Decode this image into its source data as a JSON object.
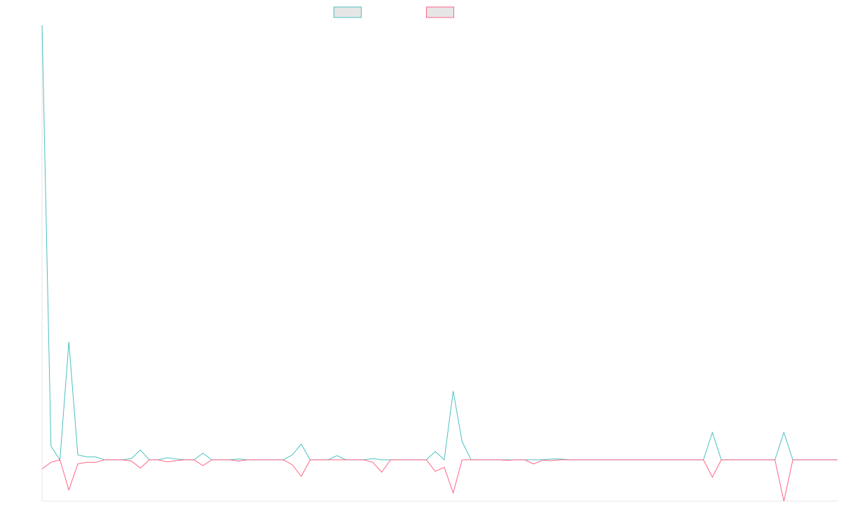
{
  "chart_data": {
    "type": "line",
    "title": "",
    "xlabel": "",
    "ylabel": "",
    "x": [
      0,
      1,
      2,
      3,
      4,
      5,
      6,
      7,
      8,
      9,
      10,
      11,
      12,
      13,
      14,
      15,
      16,
      17,
      18,
      19,
      20,
      21,
      22,
      23,
      24,
      25,
      26,
      27,
      28,
      29,
      30,
      31,
      32,
      33,
      34,
      35,
      36,
      37,
      38,
      39,
      40,
      41,
      42,
      43,
      44,
      45,
      46,
      47,
      48,
      49,
      50,
      51,
      52,
      53,
      54,
      55,
      56,
      57,
      58,
      59,
      60,
      61,
      62,
      63,
      64,
      65,
      66,
      67,
      68,
      69,
      70,
      71,
      72,
      73,
      74,
      75,
      76,
      77,
      78,
      79,
      80,
      81,
      82,
      83,
      84,
      85,
      86,
      87,
      88,
      89
    ],
    "ylim": [
      -1.0,
      10.5
    ],
    "legend_position": "top-center",
    "grid": false,
    "series": [
      {
        "color": "#4bc0c0",
        "values": [
          10.5,
          0.33,
          0,
          2.85,
          0.12,
          0.07,
          0.07,
          0,
          0,
          0,
          0.03,
          0.24,
          0,
          0,
          0.05,
          0.02,
          0,
          0,
          0.16,
          0,
          0,
          0,
          0.02,
          0,
          0,
          0,
          0,
          0,
          0.12,
          0.38,
          0,
          0,
          0,
          0.1,
          0,
          0,
          0,
          0.03,
          0,
          0,
          0,
          0,
          0,
          0,
          0.2,
          0,
          1.66,
          0.44,
          0,
          0,
          0,
          0,
          0,
          0,
          0,
          0,
          0,
          0.02,
          0.02,
          0,
          0,
          0,
          0,
          0,
          0,
          0,
          0,
          0,
          0,
          0,
          0,
          0,
          0,
          0,
          0,
          0.66,
          0,
          0,
          0,
          0,
          0,
          0,
          0,
          0.66,
          0,
          0,
          0,
          0,
          0,
          0
        ]
      },
      {
        "color": "#ff6384",
        "values": [
          -0.22,
          -0.06,
          0,
          -0.73,
          -0.1,
          -0.06,
          -0.06,
          0,
          0,
          0,
          -0.03,
          -0.2,
          0,
          0,
          -0.05,
          -0.02,
          0,
          0,
          -0.14,
          0,
          0,
          0,
          -0.03,
          0,
          0,
          0,
          0,
          0,
          -0.12,
          -0.4,
          0,
          0,
          0,
          0,
          0,
          0,
          0,
          -0.06,
          -0.3,
          0,
          0,
          0,
          0,
          0,
          -0.28,
          -0.18,
          -0.8,
          0,
          0,
          0,
          0,
          0,
          -0.01,
          0,
          0,
          -0.1,
          -0.01,
          -0.02,
          0,
          0,
          0,
          0,
          0,
          0,
          0,
          0,
          0,
          0,
          0,
          0,
          0,
          0,
          0,
          0,
          0,
          -0.42,
          0,
          0,
          0,
          0,
          0,
          0,
          0,
          -1.0,
          0,
          0,
          0,
          0,
          0,
          0
        ]
      }
    ]
  }
}
